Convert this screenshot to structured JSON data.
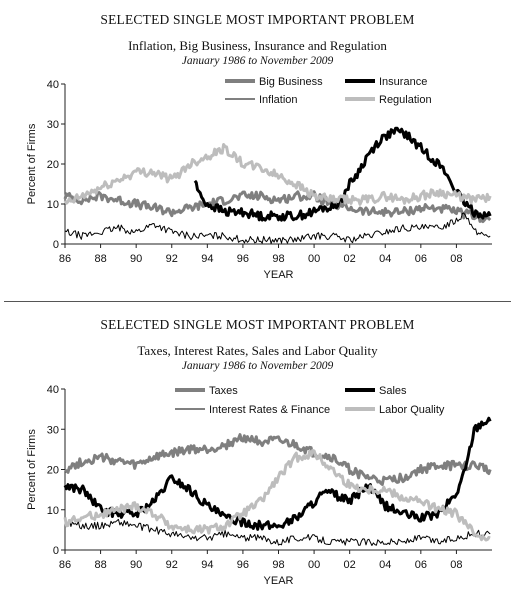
{
  "chart_data": [
    {
      "type": "line",
      "title": "SELECTED SINGLE MOST IMPORTANT PROBLEM",
      "subtitle": "Inflation, Big Business, Insurance and Regulation",
      "date_range": "January 1986 to November 2009",
      "xlabel": "YEAR",
      "ylabel": "Percent of Firms",
      "xlim": [
        1986,
        2010
      ],
      "ylim": [
        0,
        40
      ],
      "x_ticks": [
        "86",
        "88",
        "90",
        "92",
        "94",
        "96",
        "98",
        "00",
        "02",
        "04",
        "06",
        "08"
      ],
      "y_ticks": [
        "0",
        "10",
        "20",
        "30",
        "40"
      ],
      "grid": false,
      "legend_position": "top",
      "series": [
        {
          "name": "Big Business",
          "color": "#7f7f7f",
          "width": "thick",
          "points": [
            [
              1986,
              12
            ],
            [
              1987,
              11
            ],
            [
              1988,
              12
            ],
            [
              1989,
              11
            ],
            [
              1990,
              10
            ],
            [
              1991,
              9
            ],
            [
              1992,
              8
            ],
            [
              1993,
              9
            ],
            [
              1994,
              10
            ],
            [
              1995,
              11
            ],
            [
              1996,
              12
            ],
            [
              1997,
              12
            ],
            [
              1998,
              11
            ],
            [
              1999,
              12
            ],
            [
              2000,
              12
            ],
            [
              2001,
              10
            ],
            [
              2002,
              9
            ],
            [
              2003,
              8
            ],
            [
              2004,
              8
            ],
            [
              2005,
              8
            ],
            [
              2006,
              9
            ],
            [
              2007,
              9
            ],
            [
              2008,
              8
            ],
            [
              2009,
              7
            ],
            [
              2009.9,
              6
            ]
          ]
        },
        {
          "name": "Insurance",
          "color": "#000000",
          "width": "thick",
          "points": [
            [
              1993.3,
              16
            ],
            [
              1993.6,
              12
            ],
            [
              1994,
              10
            ],
            [
              1994.5,
              9
            ],
            [
              1995,
              8
            ],
            [
              1996,
              8
            ],
            [
              1997,
              7
            ],
            [
              1998,
              7
            ],
            [
              1999,
              7
            ],
            [
              2000,
              8
            ],
            [
              2000.5,
              9
            ],
            [
              2001,
              9
            ],
            [
              2001.5,
              11
            ],
            [
              2002,
              15
            ],
            [
              2002.5,
              18
            ],
            [
              2003,
              22
            ],
            [
              2003.5,
              25
            ],
            [
              2004,
              27
            ],
            [
              2004.5,
              28
            ],
            [
              2005,
              28
            ],
            [
              2005.5,
              26
            ],
            [
              2006,
              24
            ],
            [
              2006.5,
              22
            ],
            [
              2007,
              20
            ],
            [
              2007.5,
              17
            ],
            [
              2008,
              13
            ],
            [
              2008.5,
              10
            ],
            [
              2009,
              8
            ],
            [
              2009.9,
              7
            ]
          ]
        },
        {
          "name": "Inflation",
          "color": "#000000",
          "width": "thin",
          "points": [
            [
              1986,
              3
            ],
            [
              1987,
              2
            ],
            [
              1988,
              3
            ],
            [
              1989,
              4
            ],
            [
              1990,
              3
            ],
            [
              1991,
              5
            ],
            [
              1992,
              3
            ],
            [
              1993,
              2
            ],
            [
              1994,
              2
            ],
            [
              1995,
              2
            ],
            [
              1996,
              1
            ],
            [
              1997,
              1
            ],
            [
              1998,
              1
            ],
            [
              1999,
              1
            ],
            [
              2000,
              2
            ],
            [
              2001,
              2
            ],
            [
              2002,
              1
            ],
            [
              2003,
              2
            ],
            [
              2004,
              3
            ],
            [
              2005,
              4
            ],
            [
              2006,
              4
            ],
            [
              2007,
              4
            ],
            [
              2008,
              6
            ],
            [
              2008.5,
              8
            ],
            [
              2009,
              3
            ],
            [
              2009.9,
              2
            ]
          ]
        },
        {
          "name": "Regulation",
          "color": "#bdbdbd",
          "width": "thick",
          "points": [
            [
              1986,
              10
            ],
            [
              1987,
              12
            ],
            [
              1988,
              14
            ],
            [
              1989,
              16
            ],
            [
              1990,
              18
            ],
            [
              1991,
              18
            ],
            [
              1992,
              16
            ],
            [
              1993,
              20
            ],
            [
              1994,
              22
            ],
            [
              1995,
              24
            ],
            [
              1996,
              20
            ],
            [
              1997,
              19
            ],
            [
              1998,
              17
            ],
            [
              1999,
              15
            ],
            [
              2000,
              12
            ],
            [
              2001,
              11
            ],
            [
              2002,
              11
            ],
            [
              2003,
              11
            ],
            [
              2004,
              12
            ],
            [
              2005,
              11
            ],
            [
              2006,
              12
            ],
            [
              2007,
              13
            ],
            [
              2008,
              12
            ],
            [
              2009,
              11
            ],
            [
              2009.9,
              12
            ]
          ]
        }
      ]
    },
    {
      "type": "line",
      "title": "SELECTED SINGLE MOST IMPORTANT PROBLEM",
      "subtitle": "Taxes, Interest Rates, Sales and Labor Quality",
      "date_range": "January 1986 to November 2009",
      "xlabel": "YEAR",
      "ylabel": "Percent of Firms",
      "xlim": [
        1986,
        2010
      ],
      "ylim": [
        0,
        40
      ],
      "x_ticks": [
        "86",
        "88",
        "90",
        "92",
        "94",
        "96",
        "98",
        "00",
        "02",
        "04",
        "06",
        "08"
      ],
      "y_ticks": [
        "0",
        "10",
        "20",
        "30",
        "40"
      ],
      "grid": false,
      "legend_position": "top",
      "series": [
        {
          "name": "Taxes",
          "color": "#7f7f7f",
          "width": "thick",
          "points": [
            [
              1986,
              20
            ],
            [
              1987,
              22
            ],
            [
              1988,
              23
            ],
            [
              1989,
              22
            ],
            [
              1990,
              21
            ],
            [
              1991,
              23
            ],
            [
              1992,
              24
            ],
            [
              1993,
              25
            ],
            [
              1994,
              25
            ],
            [
              1995,
              26
            ],
            [
              1996,
              28
            ],
            [
              1997,
              27
            ],
            [
              1998,
              27
            ],
            [
              1999,
              26
            ],
            [
              2000,
              24
            ],
            [
              2001,
              23
            ],
            [
              2002,
              20
            ],
            [
              2003,
              18
            ],
            [
              2004,
              17
            ],
            [
              2005,
              18
            ],
            [
              2006,
              20
            ],
            [
              2007,
              21
            ],
            [
              2008,
              21
            ],
            [
              2009,
              21
            ],
            [
              2009.9,
              20
            ]
          ]
        },
        {
          "name": "Sales",
          "color": "#000000",
          "width": "thick",
          "points": [
            [
              1986,
              16
            ],
            [
              1987,
              15
            ],
            [
              1988,
              10
            ],
            [
              1989,
              9
            ],
            [
              1990,
              9
            ],
            [
              1991,
              12
            ],
            [
              1992,
              18
            ],
            [
              1993,
              15
            ],
            [
              1994,
              11
            ],
            [
              1995,
              8
            ],
            [
              1996,
              7
            ],
            [
              1997,
              6
            ],
            [
              1998,
              6
            ],
            [
              1999,
              8
            ],
            [
              2000,
              12
            ],
            [
              2000.5,
              14
            ],
            [
              2001,
              14
            ],
            [
              2002,
              12
            ],
            [
              2003,
              16
            ],
            [
              2004,
              11
            ],
            [
              2005,
              9
            ],
            [
              2006,
              8
            ],
            [
              2007,
              9
            ],
            [
              2008,
              14
            ],
            [
              2008.5,
              20
            ],
            [
              2009,
              30
            ],
            [
              2009.5,
              32
            ],
            [
              2009.9,
              32
            ]
          ]
        },
        {
          "name": "Interest Rates & Finance",
          "color": "#000000",
          "width": "thin",
          "points": [
            [
              1986,
              7
            ],
            [
              1987,
              6
            ],
            [
              1988,
              6
            ],
            [
              1989,
              7
            ],
            [
              1990,
              6
            ],
            [
              1991,
              5
            ],
            [
              1992,
              4
            ],
            [
              1993,
              3
            ],
            [
              1994,
              3
            ],
            [
              1995,
              4
            ],
            [
              1996,
              3
            ],
            [
              1997,
              3
            ],
            [
              1998,
              2
            ],
            [
              1999,
              3
            ],
            [
              2000,
              3
            ],
            [
              2001,
              2
            ],
            [
              2002,
              2
            ],
            [
              2003,
              2
            ],
            [
              2004,
              2
            ],
            [
              2005,
              2
            ],
            [
              2006,
              3
            ],
            [
              2007,
              2
            ],
            [
              2008,
              3
            ],
            [
              2009,
              4
            ],
            [
              2009.9,
              4
            ]
          ]
        },
        {
          "name": "Labor Quality",
          "color": "#bdbdbd",
          "width": "thick",
          "points": [
            [
              1986,
              7
            ],
            [
              1987,
              8
            ],
            [
              1988,
              9
            ],
            [
              1989,
              10
            ],
            [
              1990,
              11
            ],
            [
              1991,
              9
            ],
            [
              1992,
              6
            ],
            [
              1993,
              5
            ],
            [
              1994,
              5
            ],
            [
              1995,
              6
            ],
            [
              1996,
              9
            ],
            [
              1997,
              12
            ],
            [
              1998,
              18
            ],
            [
              1999,
              23
            ],
            [
              2000,
              24
            ],
            [
              2001,
              20
            ],
            [
              2002,
              16
            ],
            [
              2003,
              15
            ],
            [
              2004,
              15
            ],
            [
              2005,
              13
            ],
            [
              2006,
              12
            ],
            [
              2007,
              10
            ],
            [
              2008,
              9
            ],
            [
              2009,
              4
            ],
            [
              2009.9,
              3
            ]
          ]
        }
      ]
    }
  ]
}
